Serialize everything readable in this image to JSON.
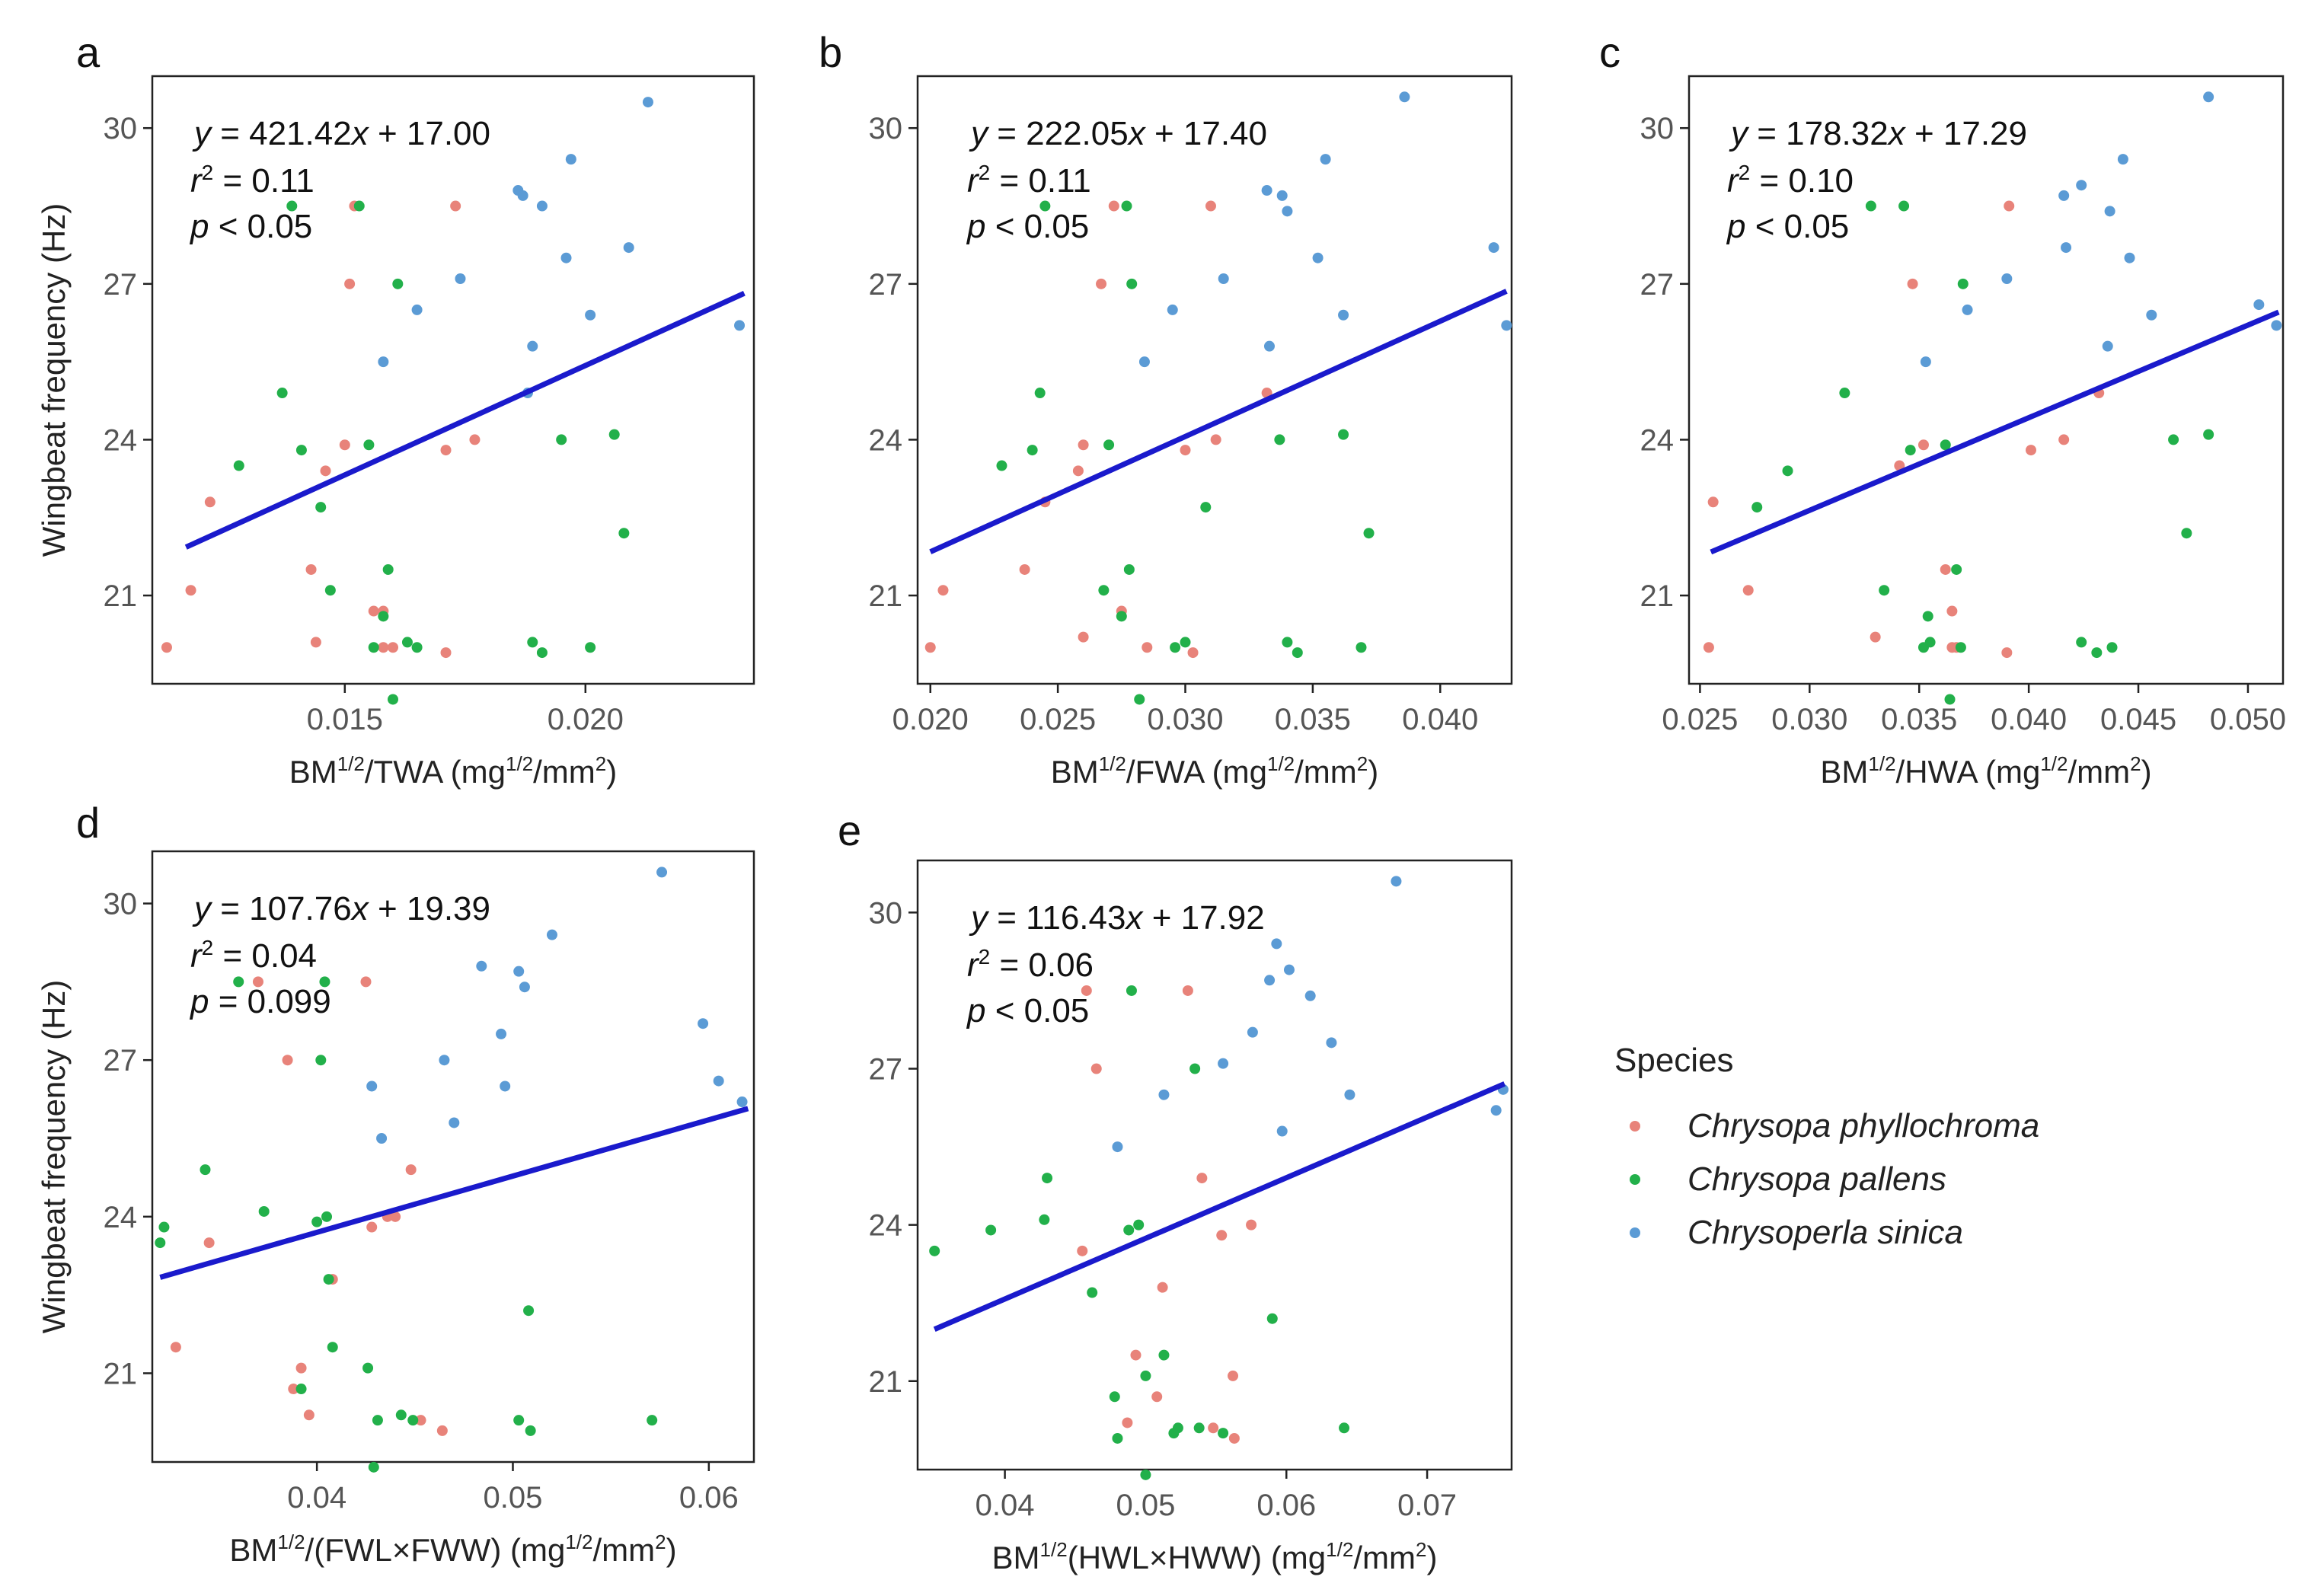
{
  "chart_data": [
    {
      "type": "scatter",
      "panel_label": "a",
      "xlabel": {
        "base": "BM",
        "sup1": "1/2",
        "mid": "/TWA (mg",
        "sup2": "1/2",
        "mid2": "/mm",
        "sup3": "2",
        "end": ")"
      },
      "ylabel": "Wingbeat frequency (Hz)",
      "xlim": [
        0.011,
        0.0235
      ],
      "ylim": [
        19.3,
        31.0
      ],
      "xticks": [
        0.015,
        0.02
      ],
      "xtick_labels": [
        "0.015",
        "0.020"
      ],
      "yticks": [
        21,
        24,
        27,
        30
      ],
      "ytick_labels": [
        "21",
        "24",
        "27",
        "30"
      ],
      "equation": {
        "y": "y",
        "eq": " = 421.42",
        "x": "x",
        "rest": " + 17.00"
      },
      "r2": {
        "r": "r",
        "sup": "2",
        "rest": " = 0.11"
      },
      "p": {
        "p": "p",
        "rest": " < 0.05"
      },
      "regression": {
        "slope": 421.42,
        "intercept": 17.0,
        "x_from": 0.0117,
        "x_to": 0.0233
      },
      "series": [
        {
          "name": "Chrysopa phyllochroma",
          "color": "#e8837a",
          "x": [
            0.0113,
            0.0118,
            0.0122,
            0.0143,
            0.0144,
            0.0146,
            0.015,
            0.0151,
            0.0152,
            0.0156,
            0.0158,
            0.0158,
            0.016,
            0.0171,
            0.0171,
            0.0173,
            0.0177
          ],
          "y": [
            20.0,
            21.1,
            22.8,
            21.5,
            20.1,
            23.4,
            23.9,
            27.0,
            28.5,
            20.7,
            20.7,
            20.0,
            20.0,
            19.9,
            23.8,
            28.5,
            24.0
          ]
        },
        {
          "name": "Chrysopa pallens",
          "color": "#22b04a",
          "x": [
            0.0128,
            0.0137,
            0.0139,
            0.0141,
            0.0145,
            0.0147,
            0.0153,
            0.0155,
            0.0156,
            0.0158,
            0.0159,
            0.016,
            0.0161,
            0.0163,
            0.0165,
            0.0189,
            0.0191,
            0.0195,
            0.0201,
            0.0206,
            0.0208
          ],
          "y": [
            23.5,
            24.9,
            28.5,
            23.8,
            22.7,
            21.1,
            28.5,
            23.9,
            20.0,
            20.6,
            21.5,
            19.0,
            27.0,
            20.1,
            20.0,
            20.1,
            19.9,
            24.0,
            20.0,
            24.1,
            22.2
          ]
        },
        {
          "name": "Chrysoperla sinica",
          "color": "#5b9bd5",
          "x": [
            0.0158,
            0.0165,
            0.0174,
            0.0186,
            0.0187,
            0.0188,
            0.0189,
            0.0191,
            0.0196,
            0.0197,
            0.0201,
            0.0209,
            0.0213,
            0.0232
          ],
          "y": [
            25.5,
            26.5,
            27.1,
            28.8,
            28.7,
            24.9,
            25.8,
            28.5,
            27.5,
            29.4,
            26.4,
            27.7,
            30.5,
            26.2
          ]
        }
      ]
    },
    {
      "type": "scatter",
      "panel_label": "b",
      "xlabel": {
        "base": "BM",
        "sup1": "1/2",
        "mid": "/FWA (mg",
        "sup2": "1/2",
        "mid2": "/mm",
        "sup3": "2",
        "end": ")"
      },
      "ylabel": "",
      "xlim": [
        0.0195,
        0.0428
      ],
      "ylim": [
        19.3,
        31.0
      ],
      "xticks": [
        0.02,
        0.025,
        0.03,
        0.035,
        0.04
      ],
      "xtick_labels": [
        "0.020",
        "0.025",
        "0.030",
        "0.035",
        "0.040"
      ],
      "yticks": [
        21,
        24,
        27,
        30
      ],
      "ytick_labels": [
        "21",
        "24",
        "27",
        "30"
      ],
      "equation": {
        "y": "y",
        "eq": " = 222.05",
        "x": "x",
        "rest": " + 17.40"
      },
      "r2": {
        "r": "r",
        "sup": "2",
        "rest": " = 0.11"
      },
      "p": {
        "p": "p",
        "rest": " < 0.05"
      },
      "regression": {
        "slope": 222.05,
        "intercept": 17.4,
        "x_from": 0.02,
        "x_to": 0.0426
      },
      "series": [
        {
          "name": "Chrysopa phyllochroma",
          "color": "#e8837a",
          "x": [
            0.02,
            0.0205,
            0.0237,
            0.0245,
            0.0258,
            0.026,
            0.026,
            0.0267,
            0.0272,
            0.0275,
            0.0285,
            0.03,
            0.0303,
            0.031,
            0.0312,
            0.0332
          ],
          "y": [
            20.0,
            21.1,
            21.5,
            22.8,
            23.4,
            23.9,
            20.2,
            27.0,
            28.5,
            20.7,
            20.0,
            23.8,
            19.9,
            28.5,
            24.0,
            24.9
          ]
        },
        {
          "name": "Chrysopa pallens",
          "color": "#22b04a",
          "x": [
            0.0228,
            0.024,
            0.0243,
            0.0245,
            0.0268,
            0.027,
            0.0275,
            0.0277,
            0.0278,
            0.0279,
            0.0282,
            0.0296,
            0.03,
            0.0308,
            0.0337,
            0.034,
            0.0344,
            0.0362,
            0.0369,
            0.0372
          ],
          "y": [
            23.5,
            23.8,
            24.9,
            28.5,
            21.1,
            23.9,
            20.6,
            28.5,
            21.5,
            27.0,
            19.0,
            20.0,
            20.1,
            22.7,
            24.0,
            20.1,
            19.9,
            24.1,
            20.0,
            22.2
          ]
        },
        {
          "name": "Chrysoperla sinica",
          "color": "#5b9bd5",
          "x": [
            0.0284,
            0.0295,
            0.0315,
            0.0332,
            0.0333,
            0.0338,
            0.034,
            0.0352,
            0.0355,
            0.0362,
            0.0386,
            0.0421,
            0.0426
          ],
          "y": [
            25.5,
            26.5,
            27.1,
            28.8,
            25.8,
            28.7,
            28.4,
            27.5,
            29.4,
            26.4,
            30.6,
            27.7,
            26.2
          ]
        }
      ]
    },
    {
      "type": "scatter",
      "panel_label": "c",
      "xlabel": {
        "base": "BM",
        "sup1": "1/2",
        "mid": "/HWA (mg",
        "sup2": "1/2",
        "mid2": "/mm",
        "sup3": "2",
        "end": ")"
      },
      "ylabel": "",
      "xlim": [
        0.0245,
        0.0516
      ],
      "ylim": [
        19.3,
        31.0
      ],
      "xticks": [
        0.025,
        0.03,
        0.035,
        0.04,
        0.045,
        0.05
      ],
      "xtick_labels": [
        "0.025",
        "0.030",
        "0.035",
        "0.040",
        "0.045",
        "0.050"
      ],
      "yticks": [
        21,
        24,
        27,
        30
      ],
      "ytick_labels": [
        "21",
        "24",
        "27",
        "30"
      ],
      "equation": {
        "y": "y",
        "eq": " = 178.32",
        "x": "x",
        "rest": " + 17.29"
      },
      "r2": {
        "r": "r",
        "sup": "2",
        "rest": " = 0.10"
      },
      "p": {
        "p": "p",
        "rest": " < 0.05"
      },
      "regression": {
        "slope": 178.32,
        "intercept": 17.29,
        "x_from": 0.0255,
        "x_to": 0.0514
      },
      "series": [
        {
          "name": "Chrysopa phyllochroma",
          "color": "#e8837a",
          "x": [
            0.0254,
            0.0256,
            0.0272,
            0.033,
            0.0341,
            0.0347,
            0.0352,
            0.0362,
            0.0365,
            0.0365,
            0.0367,
            0.039,
            0.0391,
            0.0401,
            0.0416,
            0.0432
          ],
          "y": [
            20.0,
            22.8,
            21.1,
            20.2,
            23.5,
            27.0,
            23.9,
            21.5,
            20.7,
            20.0,
            20.0,
            19.9,
            28.5,
            23.8,
            24.0,
            24.9
          ]
        },
        {
          "name": "Chrysopa pallens",
          "color": "#22b04a",
          "x": [
            0.0276,
            0.029,
            0.0316,
            0.0328,
            0.0334,
            0.0343,
            0.0346,
            0.0352,
            0.0354,
            0.0355,
            0.0362,
            0.0364,
            0.0367,
            0.0369,
            0.037,
            0.0424,
            0.0431,
            0.0438,
            0.0466,
            0.0472,
            0.0482
          ],
          "y": [
            22.7,
            23.4,
            24.9,
            28.5,
            21.1,
            28.5,
            23.8,
            20.0,
            20.6,
            20.1,
            23.9,
            19.0,
            21.5,
            20.0,
            27.0,
            20.1,
            19.9,
            20.0,
            24.0,
            22.2,
            24.1
          ]
        },
        {
          "name": "Chrysoperla sinica",
          "color": "#5b9bd5",
          "x": [
            0.0353,
            0.0372,
            0.039,
            0.0416,
            0.0417,
            0.0424,
            0.0436,
            0.0437,
            0.0443,
            0.0446,
            0.0456,
            0.0482,
            0.0505,
            0.0513
          ],
          "y": [
            25.5,
            26.5,
            27.1,
            28.7,
            27.7,
            28.9,
            25.8,
            28.4,
            29.4,
            27.5,
            26.4,
            30.6,
            26.6,
            26.2
          ]
        }
      ]
    },
    {
      "type": "scatter",
      "panel_label": "d",
      "xlabel": {
        "base": "BM",
        "sup1": "1/2",
        "mid": "/(FWL×FWW) (mg",
        "sup2": "1/2",
        "mid2": "/mm",
        "sup3": "2",
        "end": ")"
      },
      "ylabel": "Wingbeat frequency (Hz)",
      "xlim": [
        0.0316,
        0.0623
      ],
      "ylim": [
        19.3,
        31.0
      ],
      "xticks": [
        0.04,
        0.05,
        0.06
      ],
      "xtick_labels": [
        "0.04",
        "0.05",
        "0.06"
      ],
      "yticks": [
        21,
        24,
        27,
        30
      ],
      "ytick_labels": [
        "21",
        "24",
        "27",
        "30"
      ],
      "equation": {
        "y": "y",
        "eq": " = 107.76",
        "x": "x",
        "rest": " + 19.39"
      },
      "r2": {
        "r": "r",
        "sup": "2",
        "rest": " = 0.04"
      },
      "p": {
        "p": "p",
        "rest": " = 0.099"
      },
      "regression": {
        "slope": 107.76,
        "intercept": 19.39,
        "x_from": 0.032,
        "x_to": 0.062
      },
      "series": [
        {
          "name": "Chrysopa phyllochroma",
          "color": "#e8837a",
          "x": [
            0.0328,
            0.0345,
            0.037,
            0.0385,
            0.0388,
            0.0392,
            0.0396,
            0.0408,
            0.0425,
            0.0428,
            0.0436,
            0.044,
            0.0448,
            0.0453,
            0.0464
          ],
          "y": [
            21.5,
            23.5,
            28.5,
            27.0,
            20.7,
            21.1,
            20.2,
            22.8,
            28.5,
            23.8,
            24.0,
            24.0,
            24.9,
            20.1,
            19.9
          ]
        },
        {
          "name": "Chrysopa pallens",
          "color": "#22b04a",
          "x": [
            0.032,
            0.0322,
            0.0343,
            0.036,
            0.0373,
            0.0392,
            0.04,
            0.0402,
            0.0404,
            0.0405,
            0.0406,
            0.0408,
            0.0426,
            0.0429,
            0.0431,
            0.0443,
            0.0449,
            0.0503,
            0.0508,
            0.0509,
            0.0571
          ],
          "y": [
            23.5,
            23.8,
            24.9,
            28.5,
            24.1,
            20.7,
            23.9,
            27.0,
            28.5,
            24.0,
            22.8,
            21.5,
            21.1,
            19.2,
            20.1,
            20.2,
            20.1,
            20.1,
            22.2,
            19.9,
            20.1
          ]
        },
        {
          "name": "Chrysoperla sinica",
          "color": "#5b9bd5",
          "x": [
            0.0428,
            0.0433,
            0.0465,
            0.047,
            0.0484,
            0.0494,
            0.0496,
            0.0503,
            0.0506,
            0.052,
            0.0576,
            0.0597,
            0.0605,
            0.0617
          ],
          "y": [
            26.5,
            25.5,
            27.0,
            25.8,
            28.8,
            27.5,
            26.5,
            28.7,
            28.4,
            29.4,
            30.6,
            27.7,
            26.6,
            26.2
          ]
        }
      ]
    },
    {
      "type": "scatter",
      "panel_label": "e",
      "xlabel": {
        "base": "BM",
        "sup1": "1/2",
        "mid": "(HWL×HWW) (mg",
        "sup2": "1/2",
        "mid2": "/mm",
        "sup3": "2",
        "end": ")"
      },
      "ylabel": "",
      "xlim": [
        0.0338,
        0.076
      ],
      "ylim": [
        19.3,
        31.0
      ],
      "xticks": [
        0.04,
        0.05,
        0.06,
        0.07
      ],
      "xtick_labels": [
        "0.04",
        "0.05",
        "0.06",
        "0.07"
      ],
      "yticks": [
        21,
        24,
        27,
        30
      ],
      "ytick_labels": [
        "21",
        "24",
        "27",
        "30"
      ],
      "equation": {
        "y": "y",
        "eq": " = 116.43",
        "x": "x",
        "rest": " + 17.92"
      },
      "r2": {
        "r": "r",
        "sup": "2",
        "rest": " = 0.06"
      },
      "p": {
        "p": "p",
        "rest": " < 0.05"
      },
      "regression": {
        "slope": 116.43,
        "intercept": 17.92,
        "x_from": 0.035,
        "x_to": 0.0755
      },
      "series": [
        {
          "name": "Chrysopa phyllochroma",
          "color": "#e8837a",
          "x": [
            0.0455,
            0.0458,
            0.0465,
            0.0487,
            0.0493,
            0.0508,
            0.0512,
            0.053,
            0.054,
            0.0548,
            0.0554,
            0.0562,
            0.0563,
            0.0575
          ],
          "y": [
            23.5,
            28.5,
            27.0,
            20.2,
            21.5,
            20.7,
            22.8,
            28.5,
            24.9,
            20.1,
            23.8,
            21.1,
            19.9,
            24.0
          ]
        },
        {
          "name": "Chrysopa pallens",
          "color": "#22b04a",
          "x": [
            0.035,
            0.039,
            0.0428,
            0.043,
            0.0462,
            0.0478,
            0.048,
            0.0488,
            0.049,
            0.0495,
            0.05,
            0.05,
            0.0513,
            0.052,
            0.0523,
            0.0535,
            0.0538,
            0.0555,
            0.059,
            0.0641
          ],
          "y": [
            23.5,
            23.9,
            24.1,
            24.9,
            22.7,
            20.7,
            19.9,
            23.9,
            28.5,
            24.0,
            21.1,
            19.2,
            21.5,
            20.0,
            20.1,
            27.0,
            20.1,
            20.0,
            22.2,
            20.1
          ]
        },
        {
          "name": "Chrysoperla sinica",
          "color": "#5b9bd5",
          "x": [
            0.048,
            0.0513,
            0.0555,
            0.0576,
            0.0588,
            0.0593,
            0.0597,
            0.0602,
            0.0617,
            0.0632,
            0.0645,
            0.0678,
            0.0749,
            0.0754
          ],
          "y": [
            25.5,
            26.5,
            27.1,
            27.7,
            28.7,
            29.4,
            25.8,
            28.9,
            28.4,
            27.5,
            26.5,
            30.6,
            26.2,
            26.6
          ]
        }
      ]
    }
  ],
  "legend": {
    "title": "Species",
    "items": [
      {
        "label": "Chrysopa phyllochroma",
        "color": "#e8837a"
      },
      {
        "label": "Chrysopa pallens",
        "color": "#22b04a"
      },
      {
        "label": "Chrysoperla sinica",
        "color": "#5b9bd5"
      }
    ]
  },
  "colors": {
    "regression_line": "#1a1acc",
    "axis": "#222222",
    "tick_text": "#555555"
  }
}
